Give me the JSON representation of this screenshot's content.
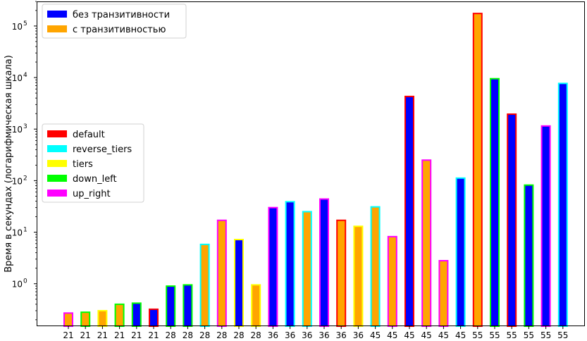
{
  "chart_data": {
    "type": "bar",
    "ylabel": "Время в секундах (логарифмическая шкала)",
    "xlabel": "",
    "yscale": "log",
    "ylim": [
      0.15,
      300000
    ],
    "yticks": [
      {
        "value": 1,
        "label": "10",
        "exp": "0"
      },
      {
        "value": 10,
        "label": "10",
        "exp": "1"
      },
      {
        "value": 100,
        "label": "10",
        "exp": "2"
      },
      {
        "value": 1000,
        "label": "10",
        "exp": "3"
      },
      {
        "value": 10000,
        "label": "10",
        "exp": "4"
      },
      {
        "value": 100000,
        "label": "10",
        "exp": "5"
      }
    ],
    "grid": false,
    "fill_legend": {
      "placement": "top-left",
      "entries": [
        {
          "label": "без транзитивности",
          "color": "#0000ff"
        },
        {
          "label": "с транзитивностью",
          "color": "#ffa500"
        }
      ]
    },
    "edge_legend": {
      "placement": "center-left",
      "entries": [
        {
          "label": "default",
          "color": "#ff0000"
        },
        {
          "label": "reverse_tiers",
          "color": "#00ffff"
        },
        {
          "label": "tiers",
          "color": "#ffff00"
        },
        {
          "label": "down_left",
          "color": "#00ff00"
        },
        {
          "label": "up_right",
          "color": "#ff00ff"
        }
      ]
    },
    "bars": [
      {
        "label": "21",
        "value": 0.27,
        "fill": "#ffa500",
        "edge": "#ff00ff"
      },
      {
        "label": "21",
        "value": 0.28,
        "fill": "#ffa500",
        "edge": "#00ff00"
      },
      {
        "label": "21",
        "value": 0.3,
        "fill": "#ffa500",
        "edge": "#ffff00"
      },
      {
        "label": "21",
        "value": 0.4,
        "fill": "#ffa500",
        "edge": "#00ff00"
      },
      {
        "label": "21",
        "value": 0.42,
        "fill": "#0000ff",
        "edge": "#00ff00"
      },
      {
        "label": "21",
        "value": 0.32,
        "fill": "#0000ff",
        "edge": "#ff0000"
      },
      {
        "label": "28",
        "value": 0.9,
        "fill": "#0000ff",
        "edge": "#00ff00"
      },
      {
        "label": "28",
        "value": 0.95,
        "fill": "#0000ff",
        "edge": "#00ff00"
      },
      {
        "label": "28",
        "value": 5.8,
        "fill": "#ffa500",
        "edge": "#00ffff"
      },
      {
        "label": "28",
        "value": 17,
        "fill": "#ffa500",
        "edge": "#ff00ff"
      },
      {
        "label": "28",
        "value": 7.2,
        "fill": "#0000ff",
        "edge": "#ffff00"
      },
      {
        "label": "28",
        "value": 0.95,
        "fill": "#ffa500",
        "edge": "#ffff00"
      },
      {
        "label": "36",
        "value": 30,
        "fill": "#0000ff",
        "edge": "#ff00ff"
      },
      {
        "label": "36",
        "value": 39,
        "fill": "#0000ff",
        "edge": "#00ffff"
      },
      {
        "label": "36",
        "value": 25,
        "fill": "#ffa500",
        "edge": "#00ffff"
      },
      {
        "label": "36",
        "value": 44,
        "fill": "#0000ff",
        "edge": "#ff00ff"
      },
      {
        "label": "36",
        "value": 17,
        "fill": "#ffa500",
        "edge": "#ff0000"
      },
      {
        "label": "36",
        "value": 13,
        "fill": "#ffa500",
        "edge": "#ffff00"
      },
      {
        "label": "45",
        "value": 31,
        "fill": "#ffa500",
        "edge": "#00ffff"
      },
      {
        "label": "45",
        "value": 8.2,
        "fill": "#ffa500",
        "edge": "#ff00ff"
      },
      {
        "label": "45",
        "value": 4300,
        "fill": "#0000ff",
        "edge": "#ff0000"
      },
      {
        "label": "45",
        "value": 250,
        "fill": "#ffa500",
        "edge": "#ff00ff"
      },
      {
        "label": "45",
        "value": 2.8,
        "fill": "#ffa500",
        "edge": "#ff00ff"
      },
      {
        "label": "45",
        "value": 112,
        "fill": "#0000ff",
        "edge": "#00ffff"
      },
      {
        "label": "55",
        "value": 175000,
        "fill": "#ffa500",
        "edge": "#ff0000"
      },
      {
        "label": "55",
        "value": 9500,
        "fill": "#0000ff",
        "edge": "#00ff00"
      },
      {
        "label": "55",
        "value": 1950,
        "fill": "#0000ff",
        "edge": "#ff0000"
      },
      {
        "label": "55",
        "value": 82,
        "fill": "#0000ff",
        "edge": "#00ff00"
      },
      {
        "label": "55",
        "value": 1150,
        "fill": "#0000ff",
        "edge": "#ff00ff"
      },
      {
        "label": "55",
        "value": 7700,
        "fill": "#0000ff",
        "edge": "#00ffff"
      }
    ]
  }
}
